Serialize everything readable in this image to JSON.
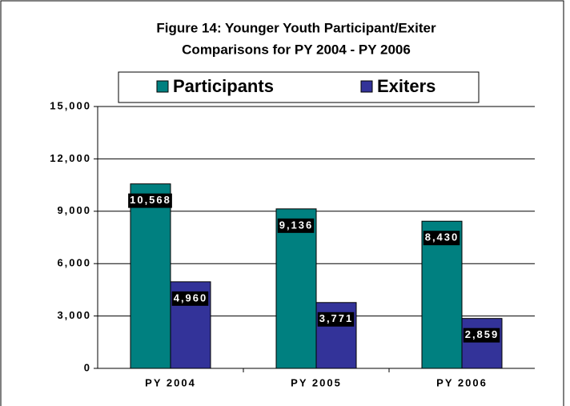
{
  "chart_data": {
    "type": "bar",
    "title": "Figure 14: Younger Youth Participant/Exiter",
    "subtitle": "Comparisons for PY 2004 - PY 2006",
    "categories": [
      "PY 2004",
      "PY 2005",
      "PY 2006"
    ],
    "series": [
      {
        "name": "Participants",
        "color": "#008080",
        "values": [
          10568,
          9136,
          8430
        ],
        "value_labels": [
          "10,568",
          "9,136",
          "8,430"
        ]
      },
      {
        "name": "Exiters",
        "color": "#333399",
        "values": [
          4960,
          3771,
          2859
        ],
        "value_labels": [
          "4,960",
          "3,771",
          "2,859"
        ]
      }
    ],
    "ylim": [
      0,
      15000
    ],
    "yticks": [
      0,
      {
        "value": 3000,
        "label": "3,000"
      },
      {
        "value": 6000,
        "label": "6,000"
      },
      {
        "value": 9000,
        "label": "9,000"
      },
      {
        "value": 12000,
        "label": "12,000"
      },
      {
        "value": 15000,
        "label": "15,000"
      }
    ],
    "grid": true,
    "legend": "top"
  }
}
